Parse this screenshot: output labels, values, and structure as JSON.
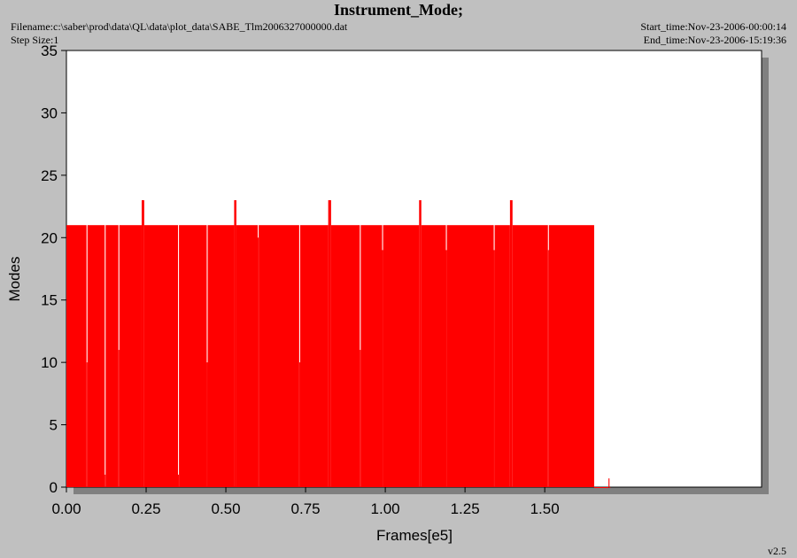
{
  "chart_data": {
    "type": "step-area",
    "title": "Instrument_Mode;",
    "filename": "Filename:c:\\saber\\prod\\data\\QL\\data\\plot_data\\SABE_Tlm2006327000000.dat",
    "step_size": "Step Size:1",
    "start_time": "Start_time:Nov-23-2006-00:00:14",
    "end_time": "End_time:Nov-23-2006-15:19:36",
    "version": "v2.5",
    "x_label": "Frames[e5]",
    "y_label": "Modes",
    "color": "#ff0000",
    "x": [
      0.0,
      0.063,
      0.066,
      0.12,
      0.123,
      0.163,
      0.166,
      0.236,
      0.244,
      0.35,
      0.353,
      0.44,
      0.443,
      0.526,
      0.533,
      0.6,
      0.603,
      0.73,
      0.733,
      0.821,
      0.83,
      0.92,
      0.923,
      0.99,
      0.993,
      1.106,
      1.113,
      1.19,
      1.193,
      1.34,
      1.343,
      1.391,
      1.399,
      1.51,
      1.513,
      1.655,
      1.7,
      1.703
    ],
    "values": [
      21,
      10,
      21,
      1,
      21,
      11,
      21,
      23,
      21,
      1,
      21,
      10,
      21,
      23,
      21,
      20,
      21,
      10,
      21,
      23,
      21,
      11,
      21,
      19,
      21,
      23,
      21,
      19,
      21,
      19,
      21,
      23,
      21,
      19,
      21,
      0,
      0.7,
      0
    ],
    "xlim": [
      0,
      2.18
    ],
    "ylim": [
      0,
      35
    ],
    "xticks": [
      {
        "value": 0,
        "label": "0.00"
      },
      0.25,
      {
        "value": 0.5,
        "label": "0.50"
      },
      0.75,
      {
        "value": 1,
        "label": "1.00"
      },
      1.25,
      {
        "value": 1.5,
        "label": "1.50"
      }
    ],
    "yticks": [
      0,
      5,
      10,
      15,
      20,
      25,
      30,
      35
    ]
  }
}
